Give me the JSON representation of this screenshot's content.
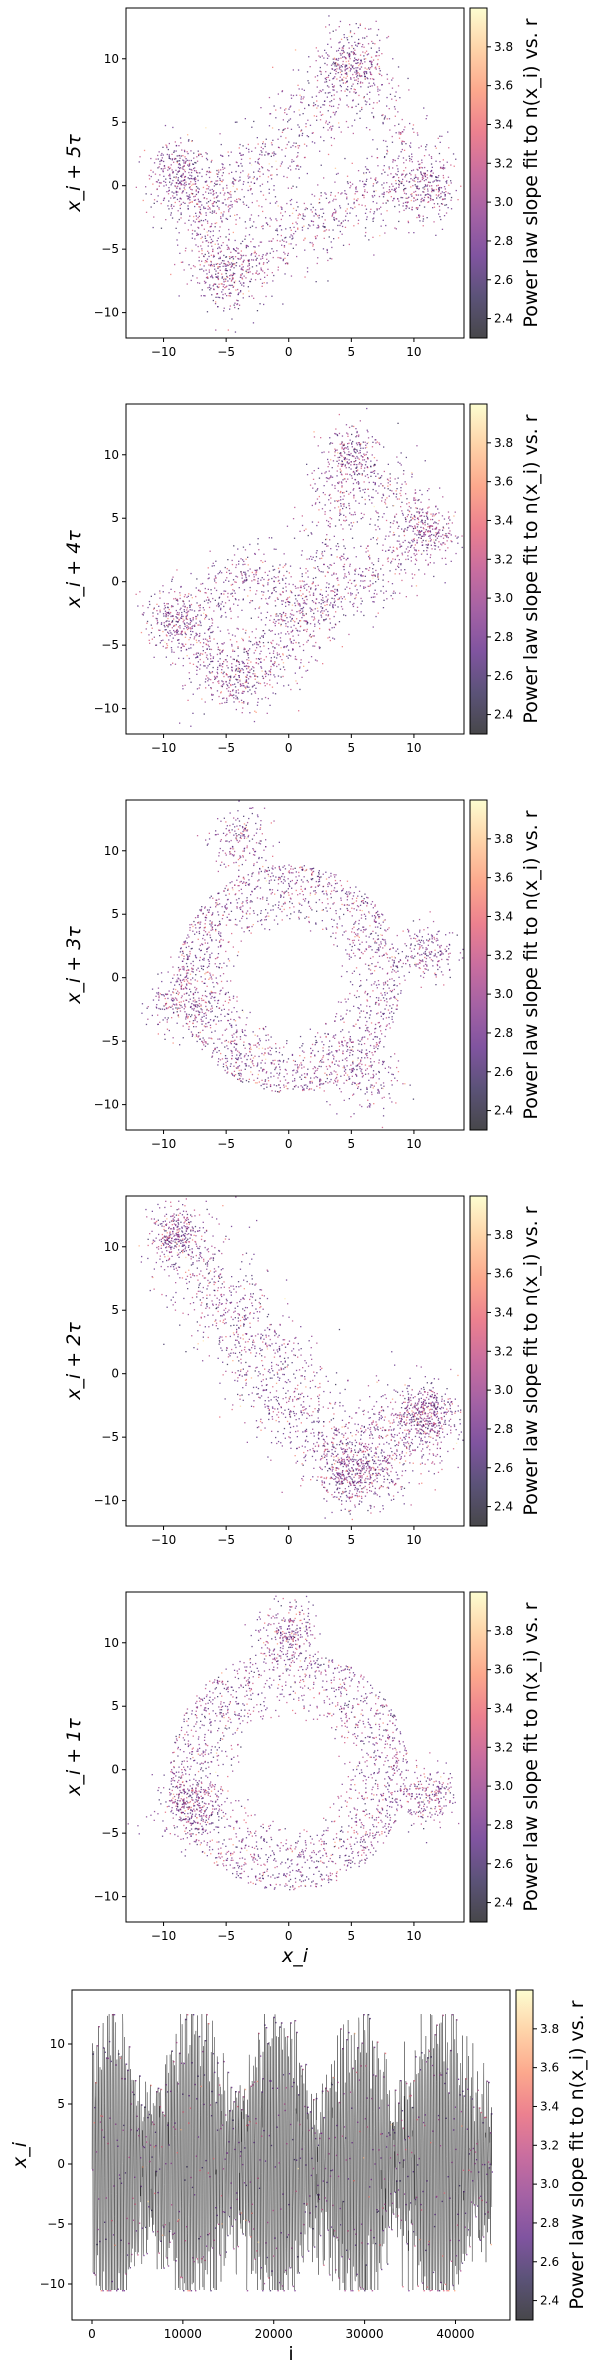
{
  "colorbar": {
    "label": "Power law slope fit to n(x_i) vs. r",
    "range": [
      2.3,
      4.0
    ],
    "ticks": [
      "2.4",
      "2.6",
      "2.8",
      "3.0",
      "3.2",
      "3.4",
      "3.6",
      "3.8"
    ],
    "colormap": [
      "#000004",
      "#1c1044",
      "#4f127b",
      "#812581",
      "#b5367a",
      "#e55064",
      "#fb8761",
      "#fec287",
      "#fcfdbf"
    ],
    "alpha": 0.72
  },
  "chart_data": [
    {
      "type": "scatter",
      "ylabel": "x_i + 5τ",
      "xlabel": "",
      "xlim": [
        -13,
        14
      ],
      "ylim": [
        -12,
        14
      ],
      "xticks": [
        "-10",
        "-5",
        "0",
        "5",
        "10"
      ],
      "yticks": [
        "-10",
        "-5",
        "0",
        "5",
        "10"
      ],
      "shape": "tilted band from lower-left to upper-right with lobes at (-9,1), (-5,-7), (5,10), (11,0) and a sparse center"
    },
    {
      "type": "scatter",
      "ylabel": "x_i + 4τ",
      "xlabel": "",
      "xlim": [
        -13,
        14
      ],
      "ylim": [
        -12,
        14
      ],
      "xticks": [
        "-10",
        "-5",
        "0",
        "5",
        "10"
      ],
      "yticks": [
        "-10",
        "-5",
        "0",
        "5",
        "10"
      ],
      "shape": "S-shaped diagonal band from (-9,-4) to (11,4), rising through (5,10) with lobes at (-9,-3) and (11,4)"
    },
    {
      "type": "scatter",
      "ylabel": "x_i + 3τ",
      "xlabel": "",
      "xlim": [
        -13,
        14
      ],
      "ylim": [
        -12,
        14
      ],
      "xticks": [
        "-10",
        "-5",
        "0",
        "5",
        "10"
      ],
      "yticks": [
        "-10",
        "-5",
        "0",
        "5",
        "10"
      ],
      "shape": "ring around the origin (radius ~5-9) with lobes at (-4,11), (-9,-2), (6,-8), (11,2)"
    },
    {
      "type": "scatter",
      "ylabel": "x_i + 2τ",
      "xlabel": "",
      "xlim": [
        -13,
        14
      ],
      "ylim": [
        -12,
        14
      ],
      "xticks": [
        "-10",
        "-5",
        "0",
        "5",
        "10"
      ],
      "yticks": [
        "-10",
        "-5",
        "0",
        "5",
        "10"
      ],
      "shape": "elongated diagonal band from (-9,11) to (5,-8) with a hook to (11,-3)"
    },
    {
      "type": "scatter",
      "ylabel": "x_i + 1τ",
      "xlabel": "x_i",
      "xlim": [
        -13,
        14
      ],
      "ylim": [
        -12,
        14
      ],
      "xticks": [
        "-10",
        "-5",
        "0",
        "5",
        "10"
      ],
      "yticks": [
        "-10",
        "-5",
        "0",
        "5",
        "10"
      ],
      "shape": "ring around the origin (radius ~4-9) with a lobe at (11,-2)"
    },
    {
      "type": "line",
      "ylabel": "x_i",
      "xlabel": "i",
      "xlim": [
        -2200,
        46000
      ],
      "ylim": [
        -13,
        14.5
      ],
      "n_points": 44000,
      "xticks": [
        "0",
        "10000",
        "20000",
        "30000",
        "40000"
      ],
      "yticks": [
        "-10",
        "-5",
        "0",
        "5",
        "10"
      ],
      "envelope": "dense oscillation between about -10 and 12 over the whole index range"
    }
  ]
}
